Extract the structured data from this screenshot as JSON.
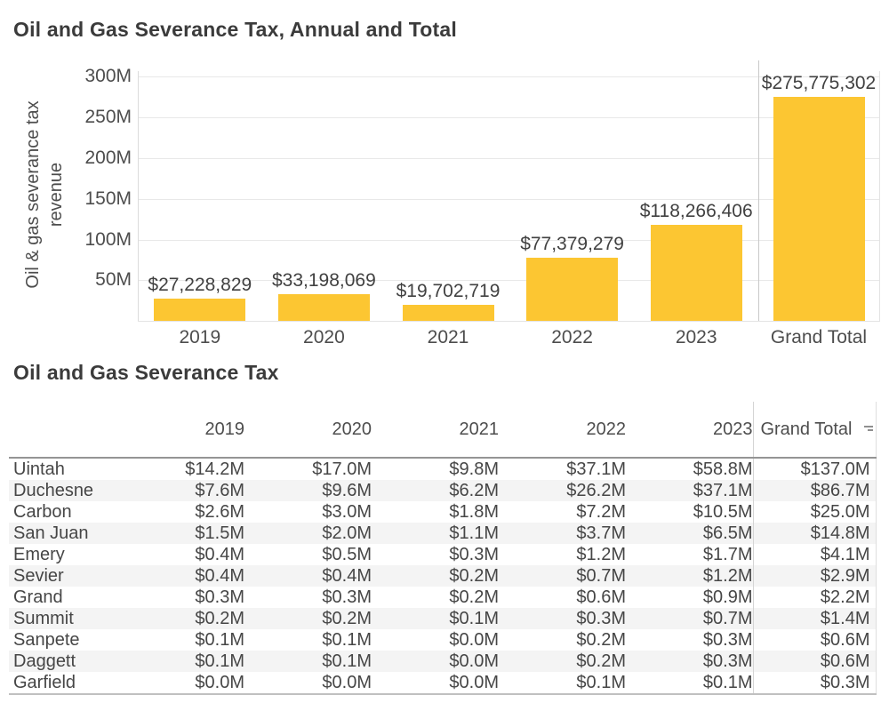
{
  "colors": {
    "bar": "#FCC632",
    "title_text": "#3b3b3b",
    "body_text": "#464646",
    "gridline": "#e8e8e8",
    "row_band": "#f4f4f4"
  },
  "bar_chart": {
    "title": "Oil and Gas Severance Tax, Annual and Total",
    "y_axis_label_line1": "Oil & gas severance tax",
    "y_axis_label_line2": "revenue"
  },
  "chart_data": {
    "type": "bar",
    "title": "Oil and Gas Severance Tax, Annual and Total",
    "ylabel": "Oil & gas severance tax revenue",
    "xlabel": "",
    "categories": [
      "2019",
      "2020",
      "2021",
      "2022",
      "2023",
      "Grand Total"
    ],
    "values": [
      27228829,
      33198069,
      19702719,
      77379279,
      118266406,
      275775302
    ],
    "value_labels": [
      "$27,228,829",
      "$33,198,069",
      "$19,702,719",
      "$77,379,279",
      "$118,266,406",
      "$275,775,302"
    ],
    "tick_values": [
      50000000,
      100000000,
      150000000,
      200000000,
      250000000,
      300000000
    ],
    "tick_labels": [
      "50M",
      "100M",
      "150M",
      "200M",
      "250M",
      "300M"
    ],
    "ylim": [
      0,
      312500000
    ],
    "grid": true,
    "legend": "none",
    "bar_color": "#FCC632"
  },
  "table": {
    "title": "Oil and Gas Severance Tax",
    "columns": [
      "2019",
      "2020",
      "2021",
      "2022",
      "2023",
      "Grand Total"
    ],
    "sort_icon": "sort-descending-icon",
    "rows": [
      {
        "county": "Uintah",
        "values": [
          "$14.2M",
          "$17.0M",
          "$9.8M",
          "$37.1M",
          "$58.8M",
          "$137.0M"
        ]
      },
      {
        "county": "Duchesne",
        "values": [
          "$7.6M",
          "$9.6M",
          "$6.2M",
          "$26.2M",
          "$37.1M",
          "$86.7M"
        ]
      },
      {
        "county": "Carbon",
        "values": [
          "$2.6M",
          "$3.0M",
          "$1.8M",
          "$7.2M",
          "$10.5M",
          "$25.0M"
        ]
      },
      {
        "county": "San Juan",
        "values": [
          "$1.5M",
          "$2.0M",
          "$1.1M",
          "$3.7M",
          "$6.5M",
          "$14.8M"
        ]
      },
      {
        "county": "Emery",
        "values": [
          "$0.4M",
          "$0.5M",
          "$0.3M",
          "$1.2M",
          "$1.7M",
          "$4.1M"
        ]
      },
      {
        "county": "Sevier",
        "values": [
          "$0.4M",
          "$0.4M",
          "$0.2M",
          "$0.7M",
          "$1.2M",
          "$2.9M"
        ]
      },
      {
        "county": "Grand",
        "values": [
          "$0.3M",
          "$0.3M",
          "$0.2M",
          "$0.6M",
          "$0.9M",
          "$2.2M"
        ]
      },
      {
        "county": "Summit",
        "values": [
          "$0.2M",
          "$0.2M",
          "$0.1M",
          "$0.3M",
          "$0.7M",
          "$1.4M"
        ]
      },
      {
        "county": "Sanpete",
        "values": [
          "$0.1M",
          "$0.1M",
          "$0.0M",
          "$0.2M",
          "$0.3M",
          "$0.6M"
        ]
      },
      {
        "county": "Daggett",
        "values": [
          "$0.1M",
          "$0.1M",
          "$0.0M",
          "$0.2M",
          "$0.3M",
          "$0.6M"
        ]
      },
      {
        "county": "Garfield",
        "values": [
          "$0.0M",
          "$0.0M",
          "$0.0M",
          "$0.1M",
          "$0.1M",
          "$0.3M"
        ]
      }
    ]
  }
}
